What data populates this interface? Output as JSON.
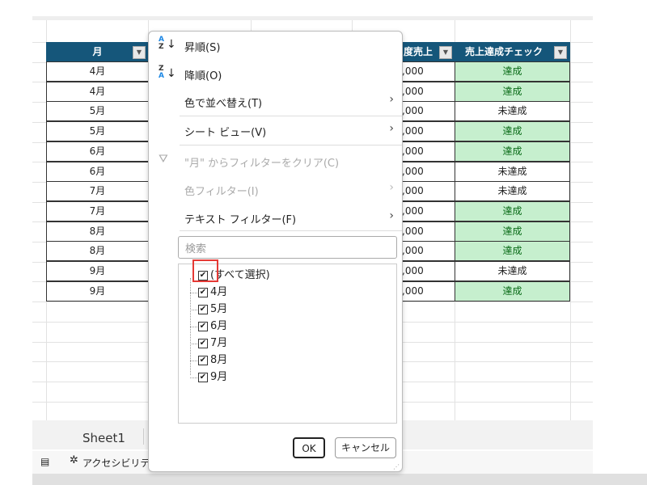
{
  "table": {
    "headers": {
      "month": "月",
      "sales": "度売上",
      "check": "売上達成チェック"
    },
    "rows": [
      {
        "month": "4月",
        "sales": ",000",
        "check": "達成",
        "achieved": true
      },
      {
        "month": "4月",
        "sales": ",000",
        "check": "達成",
        "achieved": true
      },
      {
        "month": "5月",
        "sales": ",000",
        "check": "未達成",
        "achieved": false
      },
      {
        "month": "5月",
        "sales": ",000",
        "check": "達成",
        "achieved": true
      },
      {
        "month": "6月",
        "sales": ",000",
        "check": "達成",
        "achieved": true
      },
      {
        "month": "6月",
        "sales": ",000",
        "check": "未達成",
        "achieved": false
      },
      {
        "month": "7月",
        "sales": ",000",
        "check": "未達成",
        "achieved": false
      },
      {
        "month": "7月",
        "sales": ",000",
        "check": "達成",
        "achieved": true
      },
      {
        "month": "8月",
        "sales": ",000",
        "check": "達成",
        "achieved": true
      },
      {
        "month": "8月",
        "sales": ",000",
        "check": "達成",
        "achieved": true
      },
      {
        "month": "9月",
        "sales": ",000",
        "check": "未達成",
        "achieved": false
      },
      {
        "month": "9月",
        "sales": ",000",
        "check": "達成",
        "achieved": true
      }
    ]
  },
  "colors": {
    "header": "#15567a",
    "achieved_bg": "#c6efce",
    "achieved_text": "#0a6b18",
    "highlight": "#e53935"
  },
  "menu": {
    "sort_asc": "昇順(S)",
    "sort_desc": "降順(O)",
    "sort_by_color": "色で並べ替え(T)",
    "sheet_view": "シート ビュー(V)",
    "clear_filter": "\"月\" からフィルターをクリア(C)",
    "color_filter": "色フィルター(I)",
    "text_filter": "テキスト フィルター(F)",
    "search_placeholder": "検索",
    "items": [
      {
        "label": "(すべて選択)",
        "checked": true
      },
      {
        "label": "4月",
        "checked": true
      },
      {
        "label": "5月",
        "checked": true
      },
      {
        "label": "6月",
        "checked": true
      },
      {
        "label": "7月",
        "checked": true
      },
      {
        "label": "8月",
        "checked": true
      },
      {
        "label": "9月",
        "checked": true
      }
    ],
    "ok": "OK",
    "cancel": "キャンセル"
  },
  "sheet_tab": "Sheet1",
  "status": {
    "accessibility": "アクセシビリテ"
  }
}
